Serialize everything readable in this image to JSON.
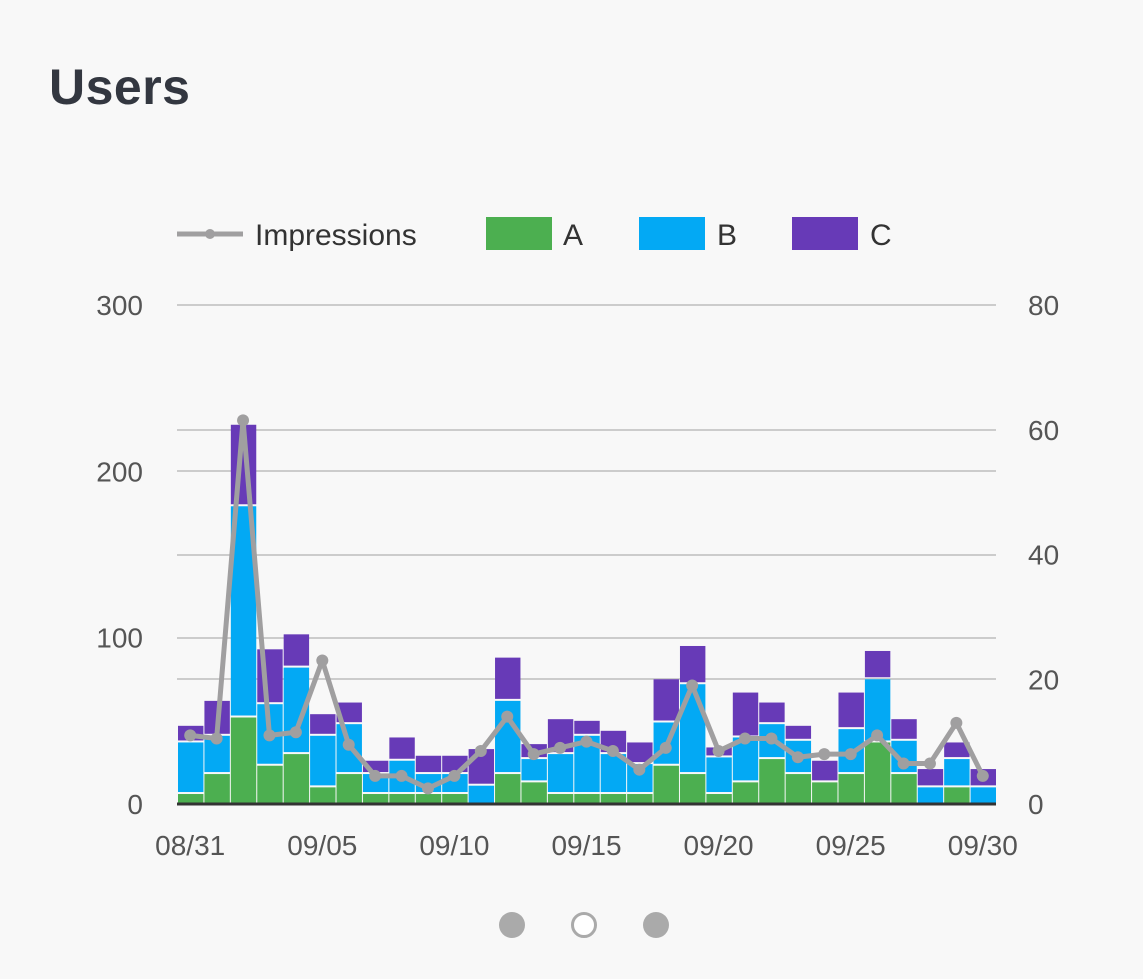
{
  "card": {
    "title": "Users"
  },
  "legend": {
    "impressions": "Impressions",
    "a": "A",
    "b": "B",
    "c": "C"
  },
  "colors": {
    "A": "#4caf50",
    "B": "#03a9f4",
    "C": "#673ab7",
    "impressions": "#a09fa0",
    "grid": "#cccccc",
    "axis": "#333333"
  },
  "chart_data": {
    "type": "bar",
    "stacked": true,
    "title": "Users",
    "x_ticks": [
      "08/31",
      "09/05",
      "09/10",
      "09/15",
      "09/20",
      "09/25",
      "09/30"
    ],
    "left_axis": {
      "ticks": [
        "0",
        "100",
        "200",
        "300"
      ],
      "ylim": [
        0,
        300
      ]
    },
    "right_axis": {
      "ticks": [
        "0",
        "20",
        "40",
        "60",
        "80"
      ],
      "ylim": [
        0,
        80
      ]
    },
    "grid": true,
    "legend_position": "top",
    "categories": [
      "08/31",
      "09/01",
      "09/02",
      "09/03",
      "09/04",
      "09/05",
      "09/06",
      "09/07",
      "09/08",
      "09/09",
      "09/10",
      "09/11",
      "09/12",
      "09/13",
      "09/14",
      "09/15",
      "09/16",
      "09/17",
      "09/18",
      "09/19",
      "09/20",
      "09/21",
      "09/22",
      "09/23",
      "09/24",
      "09/25",
      "09/26",
      "09/27",
      "09/28",
      "09/29",
      "09/30"
    ],
    "series": [
      {
        "name": "A",
        "axis": "left",
        "values": [
          6,
          18,
          52,
          23,
          30,
          10,
          18,
          6,
          6,
          6,
          6,
          0,
          18,
          13,
          6,
          6,
          6,
          6,
          23,
          18,
          6,
          13,
          27,
          18,
          13,
          18,
          37,
          18,
          0,
          10,
          0
        ]
      },
      {
        "name": "B",
        "axis": "left",
        "values": [
          31,
          23,
          127,
          37,
          52,
          31,
          30,
          12,
          20,
          12,
          12,
          11,
          44,
          14,
          24,
          35,
          24,
          18,
          26,
          54,
          22,
          27,
          21,
          20,
          0,
          27,
          38,
          20,
          10,
          17,
          10
        ]
      },
      {
        "name": "C",
        "axis": "left",
        "values": [
          10,
          21,
          49,
          33,
          20,
          13,
          13,
          8,
          14,
          11,
          11,
          22,
          26,
          9,
          21,
          9,
          14,
          13,
          26,
          23,
          6,
          27,
          13,
          9,
          13,
          22,
          17,
          13,
          11,
          10,
          11
        ]
      },
      {
        "name": "Impressions",
        "type": "line",
        "axis": "right",
        "values": [
          11,
          10.5,
          61.5,
          11,
          11.5,
          23,
          9.5,
          4.5,
          4.5,
          2.5,
          4.5,
          8.5,
          14,
          8,
          9,
          10,
          8.5,
          5.5,
          9,
          19,
          8.5,
          10.5,
          10.5,
          7.5,
          8,
          8,
          11,
          6.5,
          6.5,
          13,
          4.5
        ]
      }
    ]
  },
  "pager": {
    "pages": [
      {
        "state": "filled"
      },
      {
        "state": "empty"
      },
      {
        "state": "filled"
      }
    ]
  }
}
